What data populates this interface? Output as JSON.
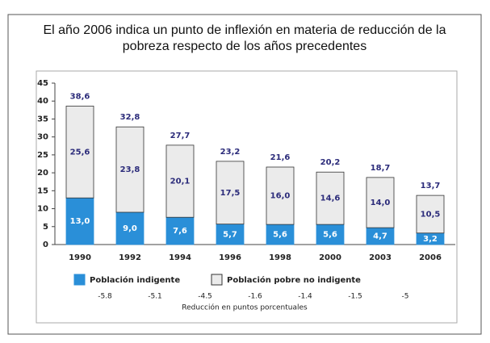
{
  "chart_data": {
    "type": "stacked_bar",
    "title": [
      "El año 2006 indica un punto de inflexión en materia de reducción de la",
      "pobreza respecto de los años precedentes"
    ],
    "categories": [
      "1990",
      "1992",
      "1994",
      "1996",
      "1998",
      "2000",
      "2003",
      "2006"
    ],
    "series": [
      {
        "name": "Población indigente",
        "color": "#2a8fd8",
        "values": [
          13.0,
          9.0,
          7.6,
          5.7,
          5.6,
          5.6,
          4.7,
          3.2
        ],
        "value_labels": [
          "13,0",
          "9,0",
          "7,6",
          "5,7",
          "5,6",
          "5,6",
          "4,7",
          "3,2"
        ]
      },
      {
        "name": "Población pobre no indigente",
        "color": "#ebebeb",
        "values": [
          25.6,
          23.8,
          20.1,
          17.5,
          16.0,
          14.6,
          14.0,
          10.5
        ],
        "value_labels": [
          "25,6",
          "23,8",
          "20,1",
          "17,5",
          "16,0",
          "14,6",
          "14,0",
          "10,5"
        ]
      }
    ],
    "totals": [
      38.6,
      32.8,
      27.7,
      23.2,
      21.6,
      20.2,
      18.7,
      13.7
    ],
    "total_labels": [
      "38,6",
      "32,8",
      "27,7",
      "23,2",
      "21,6",
      "20,2",
      "18,7",
      "13,7"
    ],
    "reductions": [
      -5.8,
      -5.1,
      -4.5,
      -1.6,
      -1.4,
      -1.5,
      -5
    ],
    "reductions_label": "Reducción en puntos porcentuales",
    "ylim": [
      0,
      45
    ],
    "yticks": [
      0,
      5,
      10,
      15,
      20,
      25,
      30,
      35,
      40,
      45
    ]
  }
}
